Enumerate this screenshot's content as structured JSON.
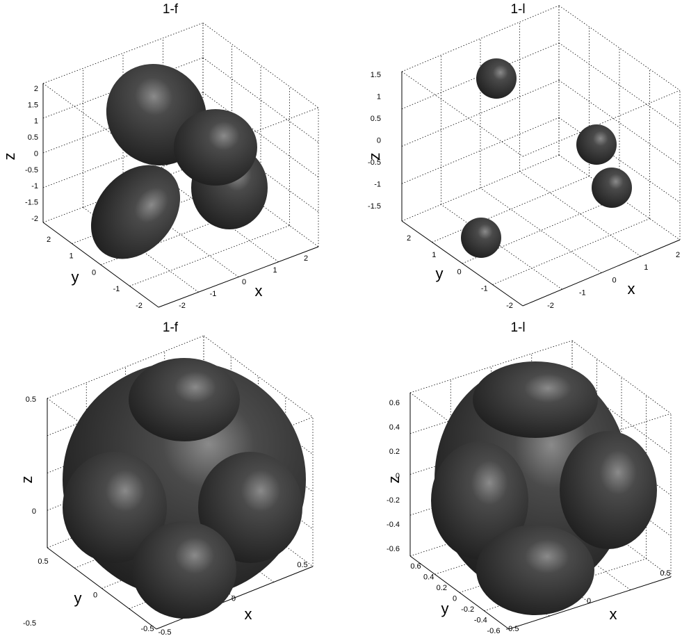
{
  "panels": [
    {
      "title": "1-f",
      "z_label": "z",
      "y_label": "y",
      "x_label": "x",
      "z_ticks": [
        "2",
        "1.5",
        "1",
        "0.5",
        "0",
        "-0.5",
        "-1",
        "-1.5",
        "-2"
      ],
      "y_ticks": [
        "2",
        "1",
        "0",
        "-1",
        "-2"
      ],
      "x_ticks": [
        "-2",
        "-1",
        "0",
        "1",
        "2"
      ]
    },
    {
      "title": "1-l",
      "z_label": "z",
      "y_label": "y",
      "x_label": "x",
      "z_ticks": [
        "1.5",
        "1",
        "0.5",
        "0",
        "-0.5",
        "-1",
        "-1.5"
      ],
      "y_ticks": [
        "2",
        "1",
        "0",
        "-1",
        "-2"
      ],
      "x_ticks": [
        "-2",
        "-1",
        "0",
        "1",
        "2"
      ]
    },
    {
      "title": "1-f",
      "z_label": "z",
      "y_label": "y",
      "x_label": "x",
      "z_ticks": [
        "0.5",
        "0",
        "-0.5"
      ],
      "y_ticks": [
        "0.5",
        "0",
        "-0.5"
      ],
      "x_ticks": [
        "-0.5",
        "0",
        "0.5"
      ]
    },
    {
      "title": "1-l",
      "z_label": "z",
      "y_label": "y",
      "x_label": "x",
      "z_ticks": [
        "0.6",
        "0.4",
        "0.2",
        "0",
        "-0.2",
        "-0.4",
        "-0.6"
      ],
      "y_ticks": [
        "0.6",
        "0.4",
        "0.2",
        "0",
        "-0.2",
        "-0.4",
        "-0.6"
      ],
      "x_ticks": [
        "-0.5",
        "0",
        "0.5"
      ]
    }
  ]
}
